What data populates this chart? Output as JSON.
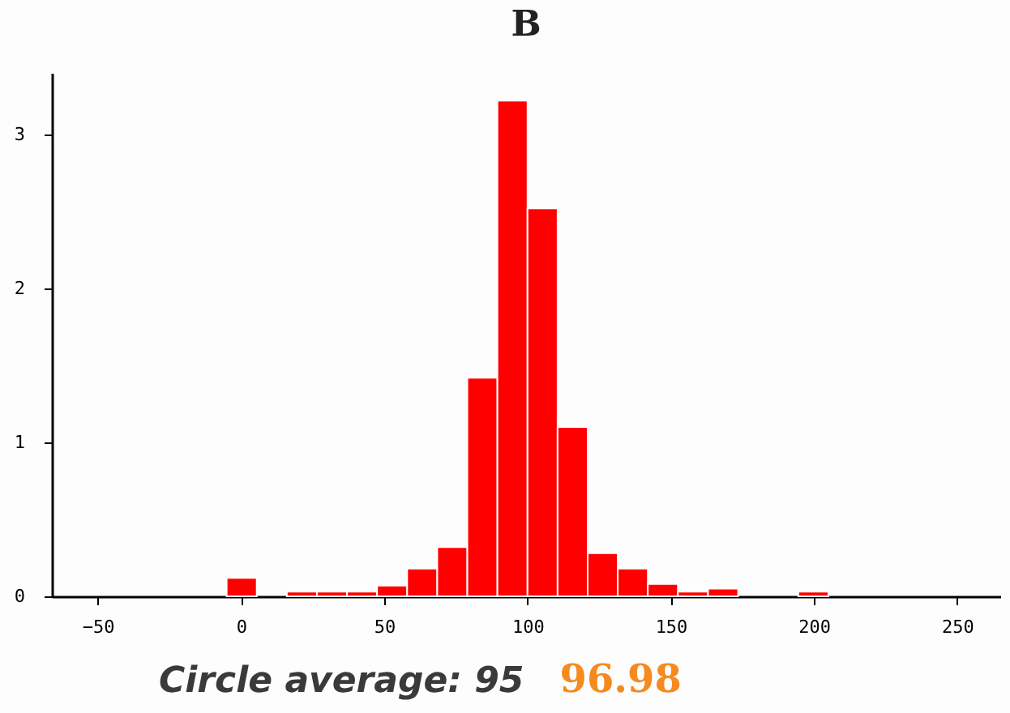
{
  "chart_data": {
    "type": "histogram",
    "title": "B",
    "bins": [
      -5,
      5.5,
      16,
      26.5,
      37,
      47.5,
      58,
      68.5,
      79,
      89.5,
      100,
      110.5,
      121,
      131.5,
      142,
      152.5,
      163,
      173.5,
      184,
      194.5,
      205
    ],
    "values": [
      0.12,
      0,
      0.03,
      0.03,
      0.03,
      0.07,
      0.18,
      0.32,
      1.42,
      3.22,
      2.52,
      1.1,
      0.28,
      0.18,
      0.08,
      0.03,
      0.05,
      0,
      0,
      0.03
    ],
    "color": "#ff0000",
    "xlim": [
      -66,
      265
    ],
    "xticks": [
      -50,
      0,
      50,
      100,
      150,
      200,
      250
    ],
    "ylim": [
      0,
      3.4
    ],
    "yticks": [
      0,
      1,
      2,
      3
    ],
    "grid": false,
    "annotations": [
      "Circle average: 95",
      "96.98"
    ]
  }
}
